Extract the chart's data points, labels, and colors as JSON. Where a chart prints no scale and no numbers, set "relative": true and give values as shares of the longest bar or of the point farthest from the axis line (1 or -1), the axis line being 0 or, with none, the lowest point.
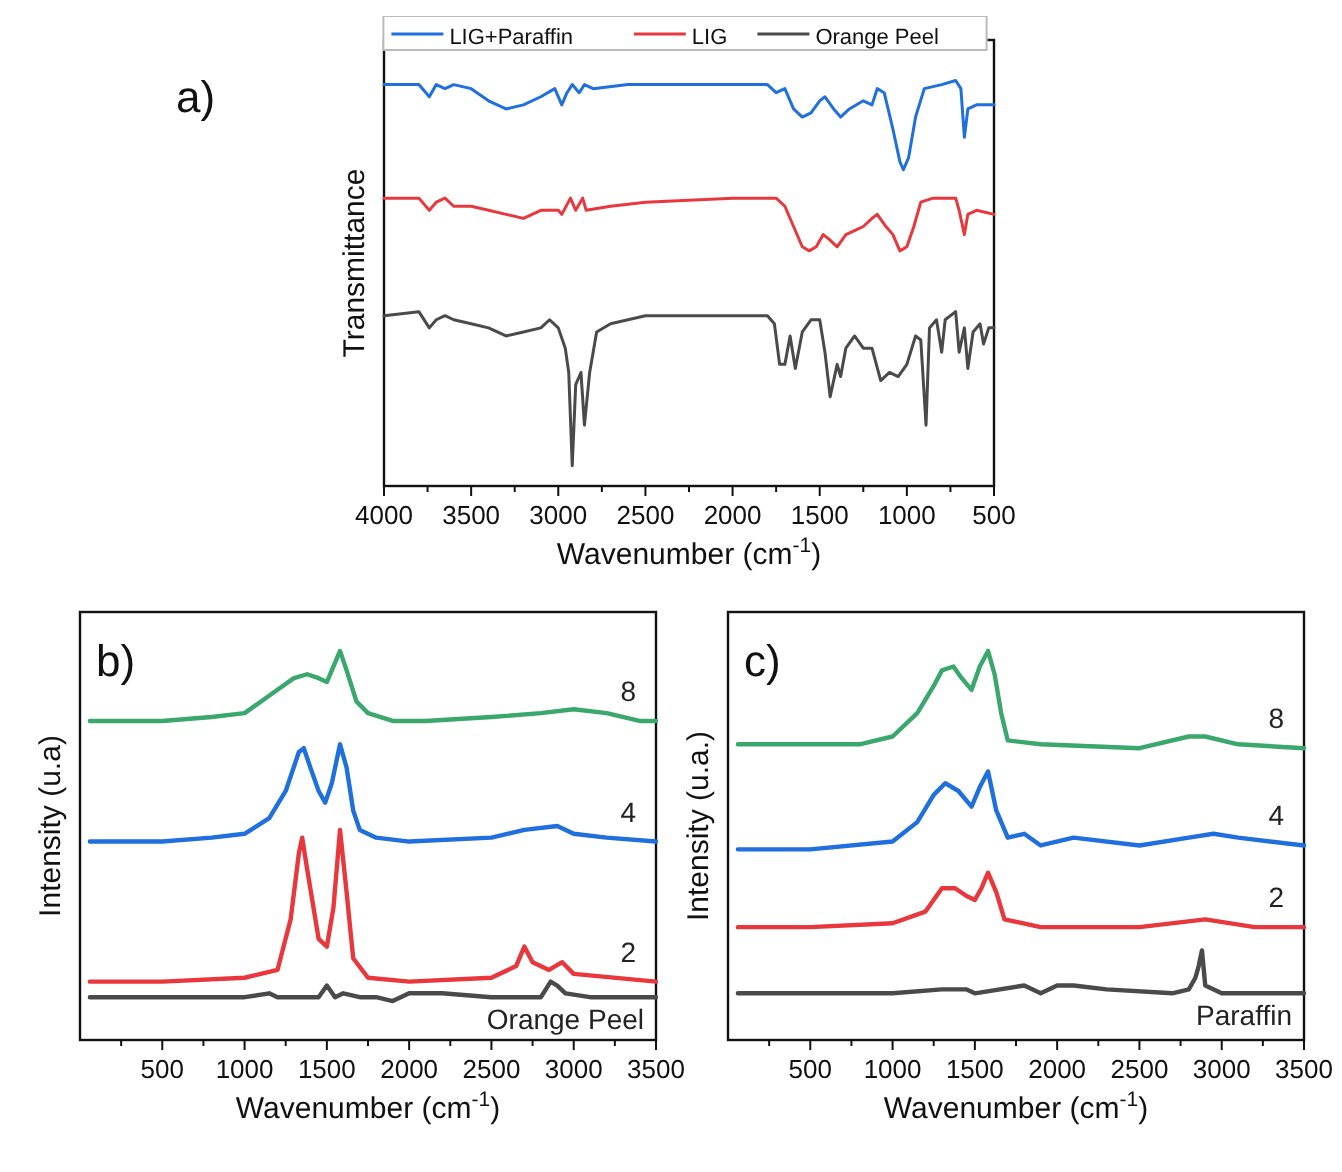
{
  "chart_data": [
    {
      "type": "line",
      "title": "a)",
      "xlabel": "Wavenumber (cm$^{-1}$)",
      "ylabel": "Transmittance",
      "relative": true,
      "legend": "top",
      "tick_labels": "x",
      "xlim": [
        4000,
        500
      ],
      "xticks": [
        4000,
        {
          "value": 3750,
          "label": null
        },
        3500,
        {
          "value": 3250,
          "label": null
        },
        3000,
        {
          "value": 2750,
          "label": null
        },
        2500,
        {
          "value": 2250,
          "label": null
        },
        2000,
        {
          "value": 1750,
          "label": null
        },
        1500,
        {
          "value": 1250,
          "label": null
        },
        1000,
        {
          "value": 750,
          "label": null
        },
        500
      ],
      "series": [
        {
          "name": "LIG+Paraffin",
          "color": "#1f6fdc",
          "x": [
            4000,
            3800,
            3740,
            3700,
            3650,
            3600,
            3500,
            3400,
            3300,
            3200,
            3100,
            3020,
            2980,
            2950,
            2920,
            2880,
            2850,
            2800,
            2600,
            2500,
            2000,
            1800,
            1750,
            1700,
            1650,
            1600,
            1550,
            1500,
            1470,
            1420,
            1380,
            1330,
            1250,
            1200,
            1170,
            1130,
            1080,
            1040,
            1020,
            990,
            950,
            900,
            800,
            720,
            690,
            670,
            650,
            600,
            500
          ],
          "values": [
            0.99,
            0.99,
            0.96,
            0.99,
            0.98,
            0.99,
            0.98,
            0.95,
            0.93,
            0.94,
            0.96,
            0.98,
            0.94,
            0.97,
            0.99,
            0.97,
            0.99,
            0.98,
            0.99,
            0.99,
            0.99,
            0.99,
            0.97,
            0.98,
            0.93,
            0.91,
            0.92,
            0.95,
            0.96,
            0.93,
            0.91,
            0.93,
            0.95,
            0.94,
            0.98,
            0.97,
            0.88,
            0.8,
            0.78,
            0.81,
            0.91,
            0.98,
            0.99,
            1.0,
            0.98,
            0.86,
            0.93,
            0.94,
            0.94
          ]
        },
        {
          "name": "LIG",
          "color": "#e8383d",
          "x": [
            4000,
            3800,
            3740,
            3700,
            3650,
            3600,
            3500,
            3400,
            3300,
            3200,
            3100,
            3000,
            2980,
            2930,
            2900,
            2860,
            2840,
            2700,
            2500,
            2000,
            1750,
            1700,
            1650,
            1600,
            1560,
            1520,
            1480,
            1450,
            1400,
            1350,
            1300,
            1250,
            1200,
            1170,
            1120,
            1080,
            1040,
            1000,
            960,
            920,
            850,
            720,
            700,
            670,
            650,
            600,
            500
          ],
          "values": [
            0.71,
            0.71,
            0.68,
            0.7,
            0.71,
            0.69,
            0.69,
            0.68,
            0.67,
            0.66,
            0.68,
            0.68,
            0.67,
            0.71,
            0.68,
            0.71,
            0.68,
            0.69,
            0.7,
            0.71,
            0.71,
            0.69,
            0.64,
            0.59,
            0.58,
            0.59,
            0.62,
            0.61,
            0.59,
            0.62,
            0.63,
            0.64,
            0.66,
            0.67,
            0.64,
            0.62,
            0.58,
            0.59,
            0.64,
            0.7,
            0.71,
            0.71,
            0.68,
            0.62,
            0.67,
            0.68,
            0.67
          ]
        },
        {
          "name": "Orange Peel",
          "color": "#4a4a4a",
          "x": [
            4000,
            3800,
            3740,
            3700,
            3650,
            3600,
            3500,
            3400,
            3300,
            3200,
            3100,
            3050,
            3000,
            2960,
            2940,
            2920,
            2900,
            2870,
            2850,
            2820,
            2780,
            2700,
            2500,
            2100,
            1800,
            1760,
            1730,
            1700,
            1670,
            1640,
            1600,
            1550,
            1500,
            1470,
            1440,
            1400,
            1380,
            1350,
            1300,
            1250,
            1200,
            1150,
            1100,
            1050,
            1000,
            950,
            920,
            890,
            870,
            830,
            800,
            780,
            720,
            700,
            670,
            650,
            620,
            580,
            560,
            530,
            500
          ],
          "values": [
            0.42,
            0.43,
            0.39,
            0.41,
            0.42,
            0.41,
            0.4,
            0.39,
            0.37,
            0.38,
            0.39,
            0.41,
            0.39,
            0.34,
            0.28,
            0.05,
            0.25,
            0.28,
            0.15,
            0.28,
            0.38,
            0.4,
            0.42,
            0.42,
            0.42,
            0.4,
            0.3,
            0.3,
            0.37,
            0.29,
            0.38,
            0.41,
            0.41,
            0.33,
            0.22,
            0.3,
            0.27,
            0.34,
            0.37,
            0.34,
            0.34,
            0.26,
            0.28,
            0.27,
            0.3,
            0.37,
            0.36,
            0.15,
            0.39,
            0.41,
            0.33,
            0.41,
            0.43,
            0.33,
            0.39,
            0.29,
            0.38,
            0.4,
            0.35,
            0.39,
            0.39
          ]
        }
      ]
    },
    {
      "type": "line",
      "title": "b)",
      "xlabel": "Wavenumber (cm$^{-1}$)",
      "ylabel": "Intensity (u.a)",
      "relative": true,
      "tick_labels": "x",
      "xlim": [
        0,
        3500
      ],
      "xticks": [
        {
          "value": 250,
          "label": null
        },
        500,
        {
          "value": 750,
          "label": null
        },
        1000,
        {
          "value": 1250,
          "label": null
        },
        1500,
        {
          "value": 1750,
          "label": null
        },
        2000,
        {
          "value": 2250,
          "label": null
        },
        2500,
        {
          "value": 2750,
          "label": null
        },
        3000,
        {
          "value": 3250,
          "label": null
        },
        3500
      ],
      "series": [
        {
          "name": "8",
          "color": "#3aa76d",
          "x": [
            60,
            500,
            800,
            1000,
            1100,
            1200,
            1300,
            1380,
            1450,
            1500,
            1550,
            1580,
            1620,
            1680,
            1750,
            1900,
            2100,
            2500,
            2800,
            3000,
            3200,
            3400,
            3500
          ],
          "values": [
            0.82,
            0.82,
            0.83,
            0.84,
            0.87,
            0.9,
            0.93,
            0.94,
            0.93,
            0.92,
            0.97,
            1.0,
            0.95,
            0.87,
            0.84,
            0.82,
            0.82,
            0.83,
            0.84,
            0.85,
            0.84,
            0.82,
            0.82
          ]
        },
        {
          "name": "4",
          "color": "#1f6fdc",
          "x": [
            60,
            500,
            800,
            1000,
            1150,
            1250,
            1330,
            1360,
            1400,
            1450,
            1490,
            1530,
            1580,
            1620,
            1660,
            1700,
            1800,
            2000,
            2500,
            2700,
            2900,
            3000,
            3200,
            3500
          ],
          "values": [
            0.51,
            0.51,
            0.52,
            0.53,
            0.57,
            0.64,
            0.74,
            0.75,
            0.7,
            0.64,
            0.61,
            0.66,
            0.76,
            0.7,
            0.59,
            0.54,
            0.52,
            0.51,
            0.52,
            0.54,
            0.55,
            0.53,
            0.52,
            0.51
          ]
        },
        {
          "name": "2",
          "color": "#e8383d",
          "x": [
            60,
            500,
            1000,
            1200,
            1280,
            1330,
            1350,
            1380,
            1450,
            1500,
            1540,
            1580,
            1620,
            1660,
            1750,
            2000,
            2500,
            2650,
            2700,
            2750,
            2850,
            2930,
            3000,
            3500
          ],
          "values": [
            0.15,
            0.15,
            0.16,
            0.18,
            0.31,
            0.48,
            0.52,
            0.44,
            0.26,
            0.24,
            0.34,
            0.54,
            0.38,
            0.21,
            0.16,
            0.15,
            0.16,
            0.19,
            0.24,
            0.2,
            0.18,
            0.2,
            0.17,
            0.15
          ]
        },
        {
          "name": "Orange Peel",
          "color": "#4a4a4a",
          "x": [
            60,
            1000,
            1150,
            1200,
            1450,
            1500,
            1550,
            1600,
            1700,
            1800,
            1900,
            2000,
            2200,
            2500,
            2800,
            2860,
            2900,
            2950,
            3100,
            3500
          ],
          "values": [
            0.11,
            0.11,
            0.12,
            0.11,
            0.11,
            0.14,
            0.11,
            0.12,
            0.11,
            0.11,
            0.1,
            0.12,
            0.12,
            0.11,
            0.11,
            0.15,
            0.14,
            0.12,
            0.11,
            0.11
          ]
        }
      ]
    },
    {
      "type": "line",
      "title": "c)",
      "xlabel": "Wavenumber (cm$^{-1}$)",
      "ylabel": "Intensity (u.a.)",
      "relative": true,
      "tick_labels": "x",
      "xlim": [
        0,
        3500
      ],
      "xticks": [
        {
          "value": 250,
          "label": null
        },
        500,
        {
          "value": 750,
          "label": null
        },
        1000,
        {
          "value": 1250,
          "label": null
        },
        1500,
        {
          "value": 1750,
          "label": null
        },
        2000,
        {
          "value": 2250,
          "label": null
        },
        2500,
        {
          "value": 2750,
          "label": null
        },
        3000,
        {
          "value": 3250,
          "label": null
        },
        3500
      ],
      "series": [
        {
          "name": "8",
          "color": "#3aa76d",
          "x": [
            60,
            500,
            800,
            1000,
            1150,
            1250,
            1300,
            1370,
            1420,
            1480,
            1530,
            1580,
            1620,
            1660,
            1700,
            1900,
            2500,
            2800,
            2900,
            3100,
            3500
          ],
          "values": [
            0.76,
            0.76,
            0.76,
            0.78,
            0.84,
            0.91,
            0.95,
            0.96,
            0.93,
            0.9,
            0.96,
            1.0,
            0.94,
            0.84,
            0.77,
            0.76,
            0.75,
            0.78,
            0.78,
            0.76,
            0.75
          ]
        },
        {
          "name": "4",
          "color": "#1f6fdc",
          "x": [
            60,
            500,
            1000,
            1150,
            1250,
            1320,
            1400,
            1480,
            1530,
            1580,
            1630,
            1700,
            1800,
            1900,
            2100,
            2500,
            2800,
            2950,
            3100,
            3500
          ],
          "values": [
            0.49,
            0.49,
            0.51,
            0.56,
            0.63,
            0.66,
            0.64,
            0.6,
            0.65,
            0.69,
            0.59,
            0.52,
            0.53,
            0.5,
            0.52,
            0.5,
            0.52,
            0.53,
            0.52,
            0.5
          ]
        },
        {
          "name": "2",
          "color": "#e8383d",
          "x": [
            60,
            500,
            1000,
            1200,
            1300,
            1380,
            1450,
            1500,
            1540,
            1580,
            1630,
            1680,
            1900,
            2500,
            2900,
            3200,
            3500
          ],
          "values": [
            0.29,
            0.29,
            0.3,
            0.33,
            0.39,
            0.39,
            0.37,
            0.36,
            0.39,
            0.43,
            0.38,
            0.31,
            0.29,
            0.29,
            0.31,
            0.29,
            0.29
          ]
        },
        {
          "name": "Paraffin",
          "color": "#4a4a4a",
          "x": [
            60,
            1000,
            1300,
            1450,
            1500,
            1800,
            1900,
            2000,
            2100,
            2300,
            2700,
            2800,
            2840,
            2860,
            2880,
            2900,
            3000,
            3500
          ],
          "values": [
            0.12,
            0.12,
            0.13,
            0.13,
            0.12,
            0.14,
            0.12,
            0.14,
            0.14,
            0.13,
            0.12,
            0.13,
            0.16,
            0.19,
            0.23,
            0.14,
            0.12,
            0.12
          ]
        }
      ]
    }
  ]
}
